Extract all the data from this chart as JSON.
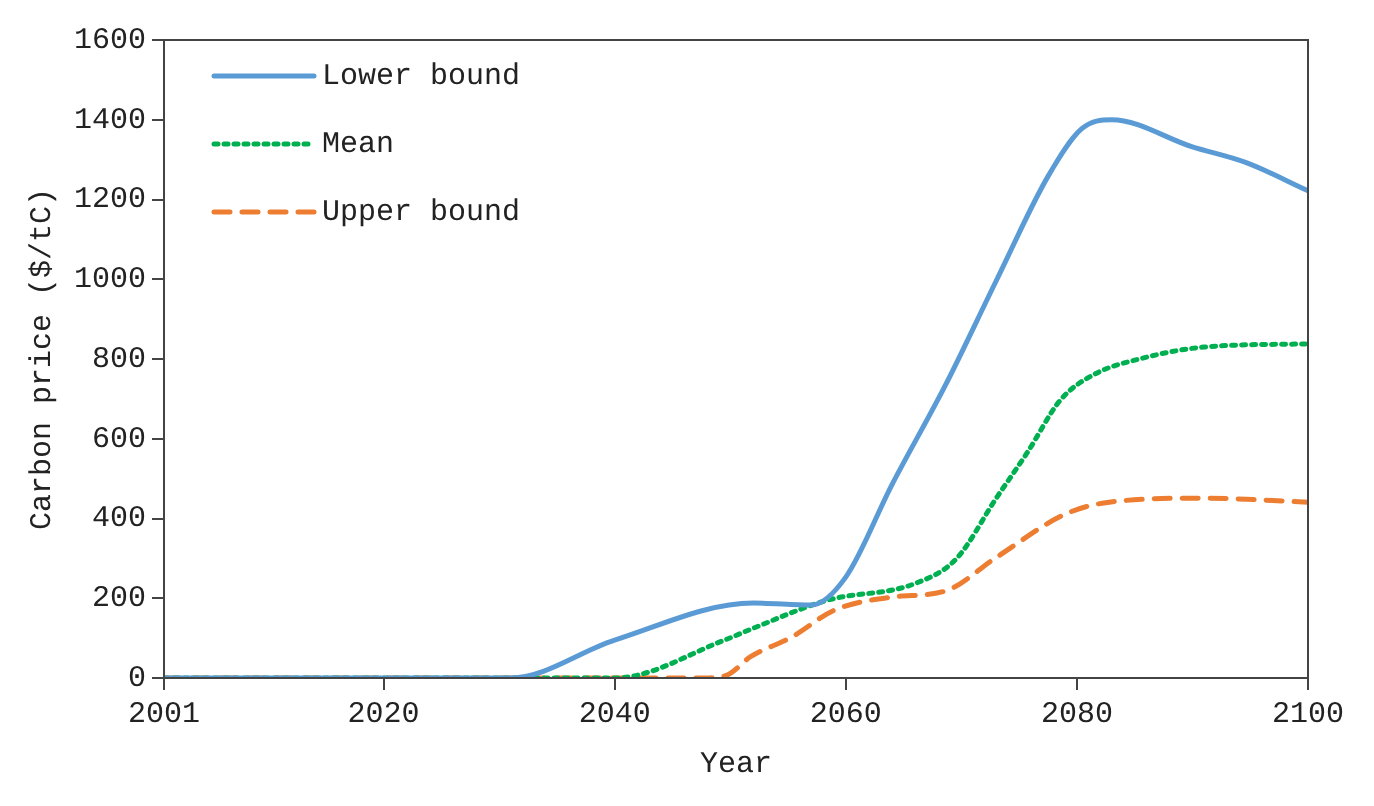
{
  "chart_data": {
    "type": "line",
    "xlabel": "Year",
    "ylabel": "Carbon price ($/tC)",
    "xlim": [
      2001,
      2100
    ],
    "xticks": [
      2001,
      2020,
      2040,
      2060,
      2080,
      2100
    ],
    "ylim": [
      0,
      1600
    ],
    "yticks": [
      0,
      200,
      400,
      600,
      800,
      1000,
      1200,
      1400,
      1600
    ],
    "grid": false,
    "legend": "top left",
    "marker": "none",
    "series": [
      {
        "name": "Lower bound",
        "color": "#5b9bd5",
        "line_style": "solid",
        "x": [
          2001,
          2020,
          2031,
          2040,
          2052,
          2057,
          2060,
          2064,
          2068.6,
          2073,
          2077.5,
          2080.4,
          2083,
          2090,
          2094.6,
          2100
        ],
        "values": [
          0,
          0,
          0,
          95,
          188,
          183,
          253,
          485,
          733,
          995,
          1258,
          1377,
          1400,
          1332,
          1293,
          1222
        ]
      },
      {
        "name": "Mean",
        "color": "#00b050",
        "line_style": "dotted",
        "x": [
          2001,
          2020,
          2040,
          2049.5,
          2052,
          2058.4,
          2066,
          2069.6,
          2073,
          2075.7,
          2078.6,
          2081.6,
          2085,
          2091,
          2100
        ],
        "values": [
          0,
          0,
          0,
          95,
          125,
          195,
          237,
          300,
          450,
          565,
          698,
          763,
          797,
          830,
          838
        ]
      },
      {
        "name": "Upper bound",
        "color": "#ed7d31",
        "line_style": "dashed",
        "x": [
          2001,
          2020,
          2040,
          2047,
          2049.5,
          2051.8,
          2055.4,
          2059,
          2064,
          2068.6,
          2073,
          2079,
          2082.8,
          2091,
          2100
        ],
        "values": [
          0,
          0,
          0,
          0,
          5,
          54,
          104,
          170,
          203,
          218,
          302,
          411,
          441,
          451,
          441
        ]
      }
    ]
  }
}
